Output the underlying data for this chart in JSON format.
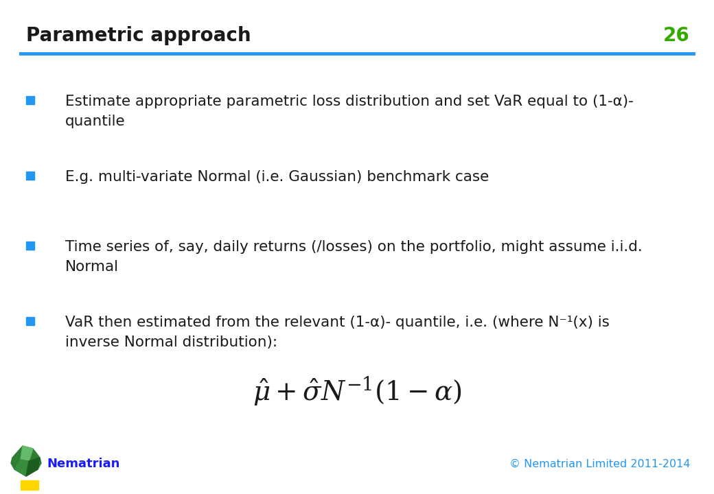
{
  "title": "Parametric approach",
  "slide_number": "26",
  "title_color": "#1a1a1a",
  "title_fontsize": 20,
  "slide_number_color": "#33AA00",
  "header_line_color": "#2196F3",
  "background_color": "#FFFFFF",
  "bullet_color": "#2196F3",
  "bullet_fontsize": 15.5,
  "footer_text": "Nematrian",
  "footer_color": "#1a1aFF",
  "copyright_text": "© Nematrian Limited 2011-2014",
  "copyright_color": "#2196F3",
  "bullet1": "Estimate appropriate parametric loss distribution and set VaR equal to (1-α)-\nquantile",
  "bullet2": "E.g. multi-variate Normal (i.e. Gaussian) benchmark case",
  "bullet3": "Time series of, say, daily returns (/losses) on the portfolio, might assume i.i.d.\nNormal",
  "bullet4": "VaR then estimated from the relevant (1-α)- quantile, i.e. (where N⁻¹(x) is\ninverse Normal distribution):",
  "formula": "$\\hat{\\mu} + \\hat{\\sigma} N^{-1}\\left(1 - \\alpha\\right)$",
  "formula_fontsize": 28,
  "logo_color1": "#2E7D32",
  "logo_color2": "#66BB6A",
  "logo_color3": "#1B5E20",
  "yellow_color": "#FFD600"
}
